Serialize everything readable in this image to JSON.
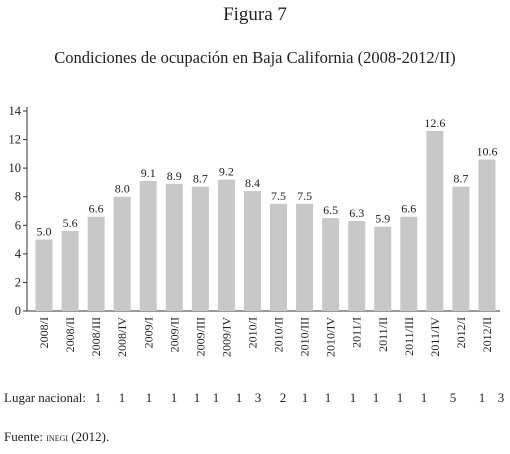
{
  "figure_label": "Figura 7",
  "chart_data": {
    "type": "bar",
    "title": "Condiciones de ocupación en Baja California (2008-2012/II)",
    "xlabel": "",
    "ylabel": "",
    "ylim": [
      0,
      14
    ],
    "yticks": [
      0,
      2,
      4,
      6,
      8,
      10,
      12,
      14
    ],
    "grid": false,
    "bar_color": "#c8c8c8",
    "categories": [
      "2008/I",
      "2008/II",
      "2008/III",
      "2008/IV",
      "2009/I",
      "2009/II",
      "2009/III",
      "2009/IV",
      "2010/I",
      "2010/II",
      "2010/III",
      "2010/IV",
      "2011/I",
      "2011/II",
      "2011/III",
      "2011/IV",
      "2012/I",
      "2012/II"
    ],
    "values": [
      5.0,
      5.6,
      6.6,
      8.0,
      9.1,
      8.9,
      8.7,
      9.2,
      8.4,
      7.5,
      7.5,
      6.5,
      6.3,
      5.9,
      6.6,
      12.6,
      8.7,
      10.6
    ],
    "value_labels": [
      "5.0",
      "5.6",
      "6.6",
      "8.0",
      "9.1",
      "8.9",
      "8.7",
      "9.2",
      "8.4",
      "7.5",
      "7.5",
      "6.5",
      "6.3",
      "5.9",
      "6.6",
      "12.6",
      "8.7",
      "10.6"
    ]
  },
  "rank_row": {
    "label": "Lugar nacional:",
    "values": [
      "1",
      "1",
      "1",
      "1",
      "1",
      "1",
      "1",
      "3",
      "2",
      "1",
      "1",
      "1",
      "1",
      "1",
      "1",
      "5",
      "1",
      "3"
    ]
  },
  "source": {
    "prefix": "Fuente: ",
    "org": "inegi",
    "suffix": " (2012)."
  }
}
